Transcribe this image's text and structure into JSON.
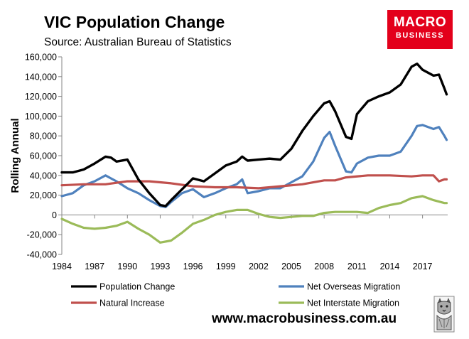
{
  "header": {
    "title": "VIC Population Change",
    "subtitle": "Source: Australian Bureau of Statistics"
  },
  "brand": {
    "logo_line1": "MACRO",
    "logo_line2": "BUSINESS",
    "website": "www.macrobusiness.com.au",
    "logo_color": "#e3001b",
    "crest": "lynx-crest-icon"
  },
  "chart_data": {
    "type": "line",
    "title": "VIC Population Change",
    "xlabel": "",
    "ylabel": "Rolling Annual",
    "xlim": [
      1984,
      2019.3
    ],
    "ylim": [
      -40000,
      160000
    ],
    "grid": false,
    "legend_position": "bottom",
    "x_ticks": [
      1984,
      1987,
      1990,
      1993,
      1996,
      1999,
      2002,
      2005,
      2008,
      2011,
      2014,
      2017
    ],
    "x_tick_labels": [
      "1984",
      "1987",
      "1990",
      "1993",
      "1996",
      "1999",
      "2002",
      "2005",
      "2008",
      "2011",
      "2014",
      "2017"
    ],
    "y_ticks": [
      -40000,
      -20000,
      0,
      20000,
      40000,
      60000,
      80000,
      100000,
      120000,
      140000,
      160000
    ],
    "y_tick_labels": [
      "-40,000",
      "-20,000",
      "0",
      "20,000",
      "40,000",
      "60,000",
      "80,000",
      "100,000",
      "120,000",
      "140,000",
      "160,000"
    ],
    "series": [
      {
        "name": "Net Overseas Migration",
        "color": "#4f81bd",
        "x": [
          1984,
          1985,
          1986,
          1987,
          1988,
          1988.5,
          1989,
          1990,
          1991,
          1992,
          1993,
          1993.5,
          1994,
          1995,
          1996,
          1997,
          1998,
          1999,
          2000,
          2000.5,
          2001,
          2002,
          2003,
          2004,
          2005,
          2006,
          2007,
          2008,
          2008.5,
          2009,
          2010,
          2010.5,
          2011,
          2012,
          2013,
          2014,
          2015,
          2016,
          2016.5,
          2017,
          2018,
          2018.5,
          2019,
          2019.2
        ],
        "y": [
          19000,
          22000,
          30000,
          34000,
          40000,
          37000,
          34000,
          27000,
          22000,
          15000,
          9000,
          8000,
          13000,
          22000,
          26000,
          18000,
          22000,
          27000,
          31000,
          36000,
          22000,
          24000,
          27000,
          27000,
          33000,
          39000,
          54000,
          78000,
          84000,
          70000,
          44000,
          43000,
          52000,
          58000,
          60000,
          60000,
          64000,
          80000,
          90000,
          91000,
          87000,
          89000,
          80000,
          76000
        ]
      },
      {
        "name": "Natural Increase",
        "color": "#c0504d",
        "x": [
          1984,
          1986,
          1988,
          1990,
          1992,
          1994,
          1996,
          1998,
          2000,
          2002,
          2004,
          2006,
          2008,
          2009,
          2010,
          2012,
          2014,
          2016,
          2017,
          2018,
          2018.5,
          2019,
          2019.2
        ],
        "y": [
          30000,
          31000,
          31000,
          34000,
          34000,
          32000,
          29000,
          28000,
          28000,
          27000,
          29000,
          31000,
          35000,
          35000,
          38000,
          40000,
          40000,
          39000,
          40000,
          40000,
          34000,
          36000,
          36000
        ]
      },
      {
        "name": "Population Change",
        "color": "#000000",
        "x": [
          1984,
          1985,
          1986,
          1987,
          1988,
          1988.5,
          1989,
          1990,
          1991,
          1992,
          1993,
          1993.5,
          1994,
          1995,
          1996,
          1997,
          1998,
          1999,
          2000,
          2000.5,
          2001,
          2002,
          2003,
          2004,
          2005,
          2006,
          2007,
          2008,
          2008.5,
          2009,
          2010,
          2010.5,
          2011,
          2012,
          2013,
          2014,
          2015,
          2016,
          2016.5,
          2017,
          2018,
          2018.5,
          2019,
          2019.2
        ],
        "y": [
          43000,
          43000,
          46000,
          52000,
          59000,
          58000,
          54000,
          56000,
          36000,
          22000,
          10000,
          9000,
          15000,
          26000,
          37000,
          34000,
          42000,
          50000,
          54000,
          59000,
          55000,
          56000,
          57000,
          56000,
          67000,
          85000,
          100000,
          113000,
          115000,
          105000,
          79000,
          77000,
          102000,
          115000,
          120000,
          124000,
          132000,
          150000,
          153000,
          147000,
          141000,
          142000,
          128000,
          122000
        ]
      },
      {
        "name": "Net Interstate Migration",
        "color": "#9bbb59",
        "x": [
          1984,
          1985,
          1986,
          1987,
          1988,
          1989,
          1990,
          1991,
          1992,
          1993,
          1994,
          1995,
          1996,
          1997,
          1998,
          1999,
          2000,
          2001,
          2002,
          2003,
          2004,
          2005,
          2006,
          2007,
          2008,
          2009,
          2010,
          2011,
          2012,
          2013,
          2014,
          2015,
          2016,
          2017,
          2018,
          2019,
          2019.2
        ],
        "y": [
          -4000,
          -9000,
          -13000,
          -14000,
          -13000,
          -11000,
          -7000,
          -14000,
          -20000,
          -28000,
          -26000,
          -18000,
          -9000,
          -5000,
          0,
          3000,
          5000,
          5000,
          1000,
          -2000,
          -3000,
          -2000,
          -1000,
          -1000,
          2000,
          3000,
          3000,
          3000,
          2000,
          7000,
          10000,
          12000,
          17000,
          19000,
          15000,
          12000,
          12000
        ]
      }
    ],
    "legend": [
      {
        "name": "Population Change",
        "color": "#000000"
      },
      {
        "name": "Net Overseas Migration",
        "color": "#4f81bd"
      },
      {
        "name": "Natural Increase",
        "color": "#c0504d"
      },
      {
        "name": "Net Interstate Migration",
        "color": "#9bbb59"
      }
    ]
  }
}
